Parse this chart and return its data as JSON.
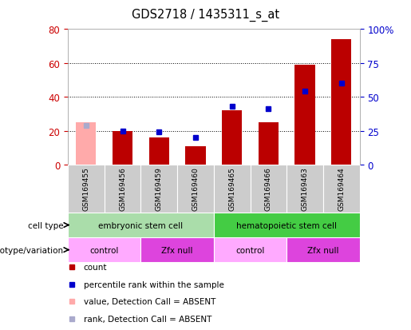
{
  "title": "GDS2718 / 1435311_s_at",
  "samples": [
    "GSM169455",
    "GSM169456",
    "GSM169459",
    "GSM169460",
    "GSM169465",
    "GSM169466",
    "GSM169463",
    "GSM169464"
  ],
  "count_values": [
    25,
    20,
    16,
    11,
    32,
    25,
    59,
    74
  ],
  "percentile_rank": [
    29,
    25,
    24,
    20,
    43,
    41,
    54,
    60
  ],
  "absent_flags": [
    true,
    false,
    false,
    false,
    false,
    false,
    false,
    false
  ],
  "ylim_left": [
    0,
    80
  ],
  "ylim_right": [
    0,
    100
  ],
  "yticks_left": [
    0,
    20,
    40,
    60,
    80
  ],
  "yticks_right": [
    0,
    25,
    50,
    75,
    100
  ],
  "ytick_labels_right": [
    "0",
    "25",
    "50",
    "75",
    "100%"
  ],
  "bar_color_normal": "#bb0000",
  "bar_color_absent": "#ffaaaa",
  "rank_color_normal": "#0000cc",
  "rank_color_absent": "#aaaacc",
  "cell_type_groups": [
    {
      "label": "embryonic stem cell",
      "start": 0,
      "end": 4,
      "color": "#aaddaa"
    },
    {
      "label": "hematopoietic stem cell",
      "start": 4,
      "end": 8,
      "color": "#44cc44"
    }
  ],
  "genotype_groups": [
    {
      "label": "control",
      "start": 0,
      "end": 2,
      "color": "#ffaaff"
    },
    {
      "label": "Zfx null",
      "start": 2,
      "end": 4,
      "color": "#dd44dd"
    },
    {
      "label": "control",
      "start": 4,
      "end": 6,
      "color": "#ffaaff"
    },
    {
      "label": "Zfx null",
      "start": 6,
      "end": 8,
      "color": "#dd44dd"
    }
  ],
  "legend_items": [
    {
      "label": "count",
      "color": "#bb0000"
    },
    {
      "label": "percentile rank within the sample",
      "color": "#0000cc"
    },
    {
      "label": "value, Detection Call = ABSENT",
      "color": "#ffaaaa"
    },
    {
      "label": "rank, Detection Call = ABSENT",
      "color": "#aaaacc"
    }
  ],
  "tick_label_color_left": "#cc0000",
  "tick_label_color_right": "#0000cc"
}
